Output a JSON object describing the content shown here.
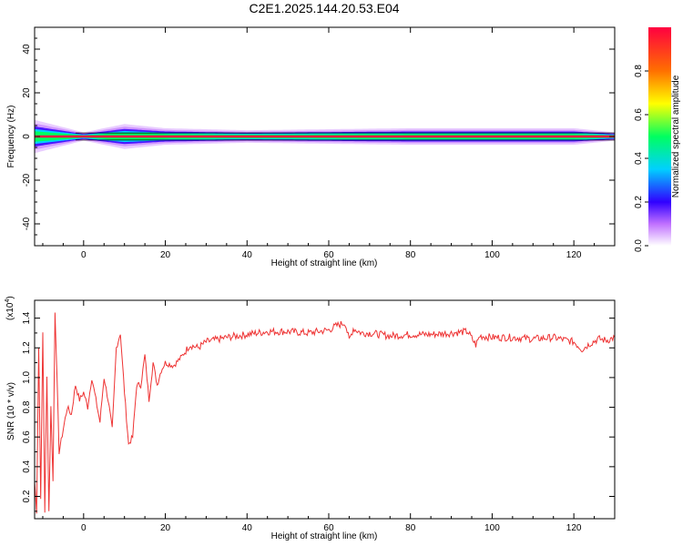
{
  "figure": {
    "title": "C2E1.2025.144.20.53.E04"
  },
  "chart_data": [
    {
      "type": "heatmap",
      "title": "",
      "xlabel": "Height of straight line (km)",
      "ylabel": "Frequency (Hz)",
      "xlim": [
        -12,
        130
      ],
      "ylim": [
        -50,
        50
      ],
      "x_ticks": [
        0,
        20,
        40,
        60,
        80,
        100,
        120
      ],
      "y_ticks": [
        -40,
        -20,
        0,
        20,
        40
      ],
      "colorbar": {
        "label": "Normalized spectral amplitude",
        "range": [
          0,
          1
        ],
        "ticks": [
          0.0,
          0.2,
          0.4,
          0.6,
          0.8
        ],
        "colormap": [
          "#ffffff",
          "#c070ff",
          "#3000ff",
          "#00d0ff",
          "#00ff60",
          "#ffff00",
          "#ff7000",
          "#ff0040"
        ]
      },
      "band": {
        "center_hz": 0,
        "approx_half_width_hz": [
          [
            -12,
            4
          ],
          [
            -8,
            3
          ],
          [
            0,
            1
          ],
          [
            10,
            3
          ],
          [
            20,
            2
          ],
          [
            40,
            1.5
          ],
          [
            80,
            2
          ],
          [
            120,
            2
          ],
          [
            130,
            1
          ]
        ],
        "peak_amplitude": 0.95
      },
      "grid": false
    },
    {
      "type": "line",
      "title": "",
      "xlabel": "Height of straight line (km)",
      "ylabel": "SNR (10 * v/v)",
      "y_multiplier": "(x10",
      "y_multiplier_exp": "4",
      "xlim": [
        -12,
        130
      ],
      "ylim": [
        0.05,
        1.52
      ],
      "x_ticks": [
        0,
        20,
        40,
        60,
        80,
        100,
        120
      ],
      "y_ticks": [
        0.2,
        0.4,
        0.6,
        0.8,
        1.0,
        1.2,
        1.4
      ],
      "series": [
        {
          "color": "#ee3333",
          "x": [
            -12,
            -11.5,
            -11,
            -10.5,
            -10,
            -9.5,
            -9,
            -8.5,
            -8,
            -7.5,
            -7,
            -6,
            -5,
            -4,
            -3,
            -2,
            -1,
            0,
            1,
            2,
            3,
            4,
            5,
            6,
            7,
            8,
            9,
            10,
            11,
            12,
            13,
            14,
            15,
            16,
            17,
            18,
            19,
            20,
            22,
            24,
            26,
            28,
            30,
            35,
            40,
            45,
            50,
            55,
            60,
            62,
            64,
            65,
            66,
            68,
            70,
            75,
            80,
            85,
            90,
            94,
            96,
            97,
            100,
            105,
            110,
            115,
            120,
            122,
            124,
            126,
            128,
            130
          ],
          "y": [
            0.3,
            0.1,
            1.2,
            0.2,
            1.3,
            0.1,
            1.0,
            0.1,
            0.8,
            0.3,
            1.45,
            0.5,
            0.65,
            0.8,
            0.75,
            0.95,
            0.85,
            0.9,
            0.8,
            1.0,
            0.85,
            0.7,
            1.0,
            0.85,
            0.65,
            1.2,
            1.3,
            0.9,
            0.55,
            0.6,
            0.95,
            0.95,
            1.15,
            0.85,
            1.1,
            0.95,
            1.05,
            1.1,
            1.08,
            1.14,
            1.22,
            1.2,
            1.24,
            1.27,
            1.29,
            1.31,
            1.31,
            1.3,
            1.32,
            1.35,
            1.37,
            1.25,
            1.33,
            1.3,
            1.3,
            1.28,
            1.29,
            1.29,
            1.3,
            1.31,
            1.22,
            1.28,
            1.27,
            1.27,
            1.26,
            1.27,
            1.24,
            1.19,
            1.23,
            1.26,
            1.25,
            1.27
          ]
        }
      ],
      "grid": false
    }
  ]
}
